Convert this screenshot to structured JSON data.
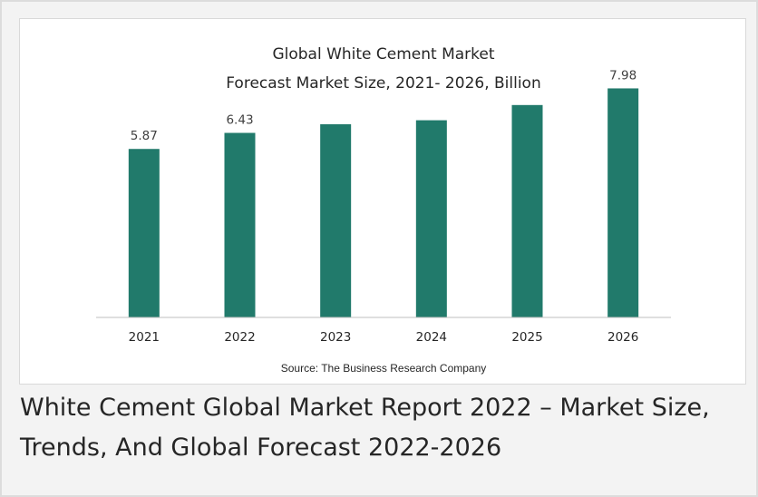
{
  "colors": {
    "bar": "#217a6b",
    "axis": "#bfbfbf"
  },
  "chart_data": {
    "type": "bar",
    "title_lines": [
      "Global White Cement Market",
      "Forecast Market Size, 2021- 2026, Billion"
    ],
    "categories": [
      "2021",
      "2022",
      "2023",
      "2024",
      "2025",
      "2026"
    ],
    "values": [
      5.87,
      6.43,
      6.73,
      6.87,
      7.4,
      7.98
    ],
    "data_labels": [
      "5.87",
      "6.43",
      "",
      "",
      "",
      "7.98"
    ],
    "xlabel": "",
    "ylabel": "",
    "ylim": [
      0,
      8.5
    ],
    "grid": false,
    "legend": "none",
    "source": "Source: The Business Research Company"
  },
  "caption": "White Cement Global Market Report 2022 – Market Size, Trends, And Global Forecast 2022-2026"
}
